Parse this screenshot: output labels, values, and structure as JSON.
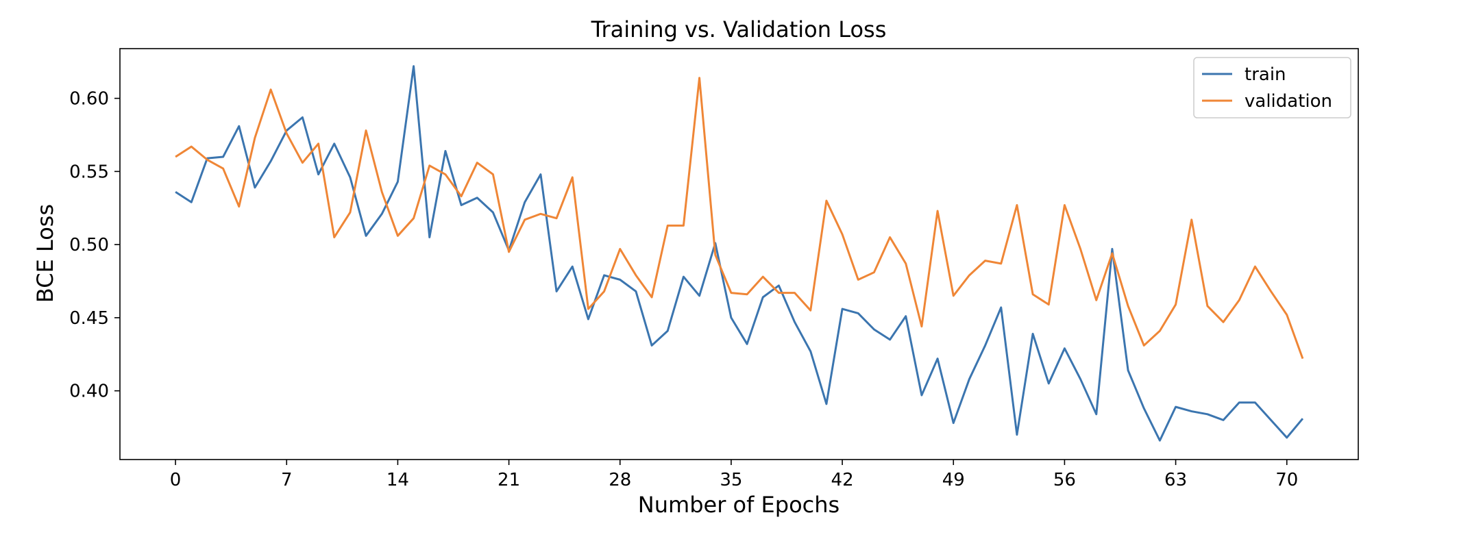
{
  "chart_data": {
    "type": "line",
    "title": "Training vs. Validation Loss",
    "xlabel": "Number of Epochs",
    "ylabel": "BCE Loss",
    "xlim": [
      -3.5,
      74.5
    ],
    "ylim": [
      0.353,
      0.634
    ],
    "xticks": [
      0,
      7,
      14,
      21,
      28,
      35,
      42,
      49,
      56,
      63,
      70
    ],
    "xtick_labels": [
      "0",
      "7",
      "14",
      "21",
      "28",
      "35",
      "42",
      "49",
      "56",
      "63",
      "70"
    ],
    "yticks": [
      0.4,
      0.45,
      0.5,
      0.55,
      0.6
    ],
    "ytick_labels": [
      "0.40",
      "0.45",
      "0.50",
      "0.55",
      "0.60"
    ],
    "grid": false,
    "legend_position": "top-right",
    "x": [
      0,
      1,
      2,
      3,
      4,
      5,
      6,
      7,
      8,
      9,
      10,
      11,
      12,
      13,
      14,
      15,
      16,
      17,
      18,
      19,
      20,
      21,
      22,
      23,
      24,
      25,
      26,
      27,
      28,
      29,
      30,
      31,
      32,
      33,
      34,
      35,
      36,
      37,
      38,
      39,
      40,
      41,
      42,
      43,
      44,
      45,
      46,
      47,
      48,
      49,
      50,
      51,
      52,
      53,
      54,
      55,
      56,
      57,
      58,
      59,
      60,
      61,
      62,
      63,
      64,
      65,
      66,
      67,
      68,
      69,
      70,
      71
    ],
    "series": [
      {
        "name": "train",
        "color": "#3b75af",
        "values": [
          0.536,
          0.529,
          0.559,
          0.56,
          0.581,
          0.539,
          0.557,
          0.578,
          0.587,
          0.548,
          0.569,
          0.546,
          0.506,
          0.521,
          0.543,
          0.622,
          0.505,
          0.564,
          0.527,
          0.532,
          0.522,
          0.496,
          0.529,
          0.548,
          0.468,
          0.485,
          0.449,
          0.479,
          0.476,
          0.468,
          0.431,
          0.441,
          0.478,
          0.465,
          0.501,
          0.45,
          0.432,
          0.464,
          0.472,
          0.447,
          0.427,
          0.391,
          0.456,
          0.453,
          0.442,
          0.435,
          0.451,
          0.397,
          0.422,
          0.378,
          0.408,
          0.431,
          0.457,
          0.37,
          0.439,
          0.405,
          0.429,
          0.408,
          0.384,
          0.497,
          0.414,
          0.388,
          0.366,
          0.389,
          0.386,
          0.384,
          0.38,
          0.392,
          0.392,
          0.38,
          0.368,
          0.381
        ]
      },
      {
        "name": "validation",
        "color": "#ef8636",
        "values": [
          0.56,
          0.567,
          0.558,
          0.552,
          0.526,
          0.573,
          0.606,
          0.576,
          0.556,
          0.569,
          0.505,
          0.522,
          0.578,
          0.536,
          0.506,
          0.518,
          0.554,
          0.548,
          0.533,
          0.556,
          0.548,
          0.495,
          0.517,
          0.521,
          0.518,
          0.546,
          0.456,
          0.468,
          0.497,
          0.479,
          0.464,
          0.513,
          0.513,
          0.614,
          0.493,
          0.467,
          0.466,
          0.478,
          0.467,
          0.467,
          0.455,
          0.53,
          0.507,
          0.476,
          0.481,
          0.505,
          0.487,
          0.444,
          0.523,
          0.465,
          0.479,
          0.489,
          0.487,
          0.527,
          0.466,
          0.459,
          0.527,
          0.497,
          0.462,
          0.494,
          0.458,
          0.431,
          0.441,
          0.459,
          0.517,
          0.458,
          0.447,
          0.462,
          0.485,
          0.468,
          0.452,
          0.422
        ]
      }
    ]
  }
}
